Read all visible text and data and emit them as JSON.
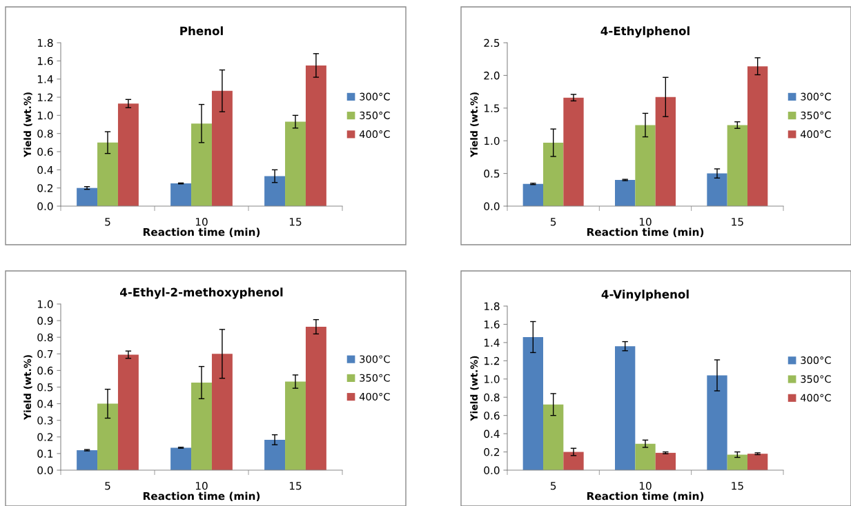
{
  "chart_data": [
    {
      "type": "bar",
      "title": "Phenol",
      "xlabel": "Reaction time (min)",
      "ylabel": "Yield (wt.%)",
      "categories": [
        "5",
        "10",
        "15"
      ],
      "ylim": [
        0,
        1.8
      ],
      "yticks": [
        {
          "value": 0,
          "label": "0.0"
        },
        0.2,
        0.4,
        0.6,
        0.8,
        {
          "value": 1,
          "label": "1.0"
        },
        1.2,
        1.4,
        1.6,
        1.8
      ],
      "legend": "right",
      "grid": false,
      "series": [
        {
          "name": "300°C",
          "color": "#4f81bd",
          "values": [
            0.2,
            0.25,
            0.33
          ],
          "errors": [
            0.015,
            0.005,
            0.07
          ]
        },
        {
          "name": "350°C",
          "color": "#9bbb59",
          "values": [
            0.7,
            0.91,
            0.93
          ],
          "errors": [
            0.12,
            0.21,
            0.07
          ]
        },
        {
          "name": "400°C",
          "color": "#c0504d",
          "values": [
            1.13,
            1.27,
            1.55
          ],
          "errors": [
            0.045,
            0.23,
            0.13
          ]
        }
      ]
    },
    {
      "type": "bar",
      "title": "4-Ethylphenol",
      "xlabel": "Reaction time (min)",
      "ylabel": "Yield (wt.%)",
      "categories": [
        "5",
        "10",
        "15"
      ],
      "ylim": [
        0,
        2.5
      ],
      "yticks": [
        {
          "value": 0,
          "label": "0.0"
        },
        0.5,
        {
          "value": 1,
          "label": "1.0"
        },
        1.5,
        {
          "value": 2,
          "label": "2.0"
        },
        2.5
      ],
      "legend": "right",
      "grid": false,
      "series": [
        {
          "name": "300°C",
          "color": "#4f81bd",
          "values": [
            0.34,
            0.4,
            0.5
          ],
          "errors": [
            0.01,
            0.01,
            0.07
          ]
        },
        {
          "name": "350°C",
          "color": "#9bbb59",
          "values": [
            0.97,
            1.24,
            1.24
          ],
          "errors": [
            0.21,
            0.18,
            0.05
          ]
        },
        {
          "name": "400°C",
          "color": "#c0504d",
          "values": [
            1.66,
            1.67,
            2.14
          ],
          "errors": [
            0.05,
            0.3,
            0.13
          ]
        }
      ]
    },
    {
      "type": "bar",
      "title": "4-Ethyl-2-methoxyphenol",
      "xlabel": "Reaction time (min)",
      "ylabel": "Yield (wt.%)",
      "categories": [
        "5",
        "10",
        "15"
      ],
      "ylim": [
        0,
        1.0
      ],
      "yticks": [
        {
          "value": 0,
          "label": "0.0"
        },
        0.1,
        0.2,
        0.3,
        0.4,
        0.5,
        0.6,
        0.7,
        0.8,
        0.9,
        {
          "value": 1,
          "label": "1.0"
        }
      ],
      "legend": "right",
      "grid": false,
      "series": [
        {
          "name": "300°C",
          "color": "#4f81bd",
          "values": [
            0.12,
            0.135,
            0.183
          ],
          "errors": [
            0.004,
            0.003,
            0.03
          ]
        },
        {
          "name": "350°C",
          "color": "#9bbb59",
          "values": [
            0.4,
            0.527,
            0.533
          ],
          "errors": [
            0.087,
            0.097,
            0.04
          ]
        },
        {
          "name": "400°C",
          "color": "#c0504d",
          "values": [
            0.695,
            0.7,
            0.863
          ],
          "errors": [
            0.022,
            0.147,
            0.043
          ]
        }
      ]
    },
    {
      "type": "bar",
      "title": "4-Vinylphenol",
      "xlabel": "Reaction time (min)",
      "ylabel": "Yield (wt.%)",
      "categories": [
        "5",
        "10",
        "15"
      ],
      "ylim": [
        0,
        1.8
      ],
      "yticks": [
        {
          "value": 0,
          "label": "0.0"
        },
        0.2,
        0.4,
        0.6,
        0.8,
        {
          "value": 1,
          "label": "1.0"
        },
        1.2,
        1.4,
        1.6,
        1.8
      ],
      "legend": "right",
      "grid": false,
      "series": [
        {
          "name": "300°C",
          "color": "#4f81bd",
          "values": [
            1.46,
            1.36,
            1.04
          ],
          "errors": [
            0.17,
            0.05,
            0.17
          ]
        },
        {
          "name": "350°C",
          "color": "#9bbb59",
          "values": [
            0.72,
            0.29,
            0.17
          ],
          "errors": [
            0.12,
            0.04,
            0.03
          ]
        },
        {
          "name": "400°C",
          "color": "#c0504d",
          "values": [
            0.2,
            0.19,
            0.18
          ],
          "errors": [
            0.04,
            0.01,
            0.01
          ]
        }
      ]
    }
  ]
}
